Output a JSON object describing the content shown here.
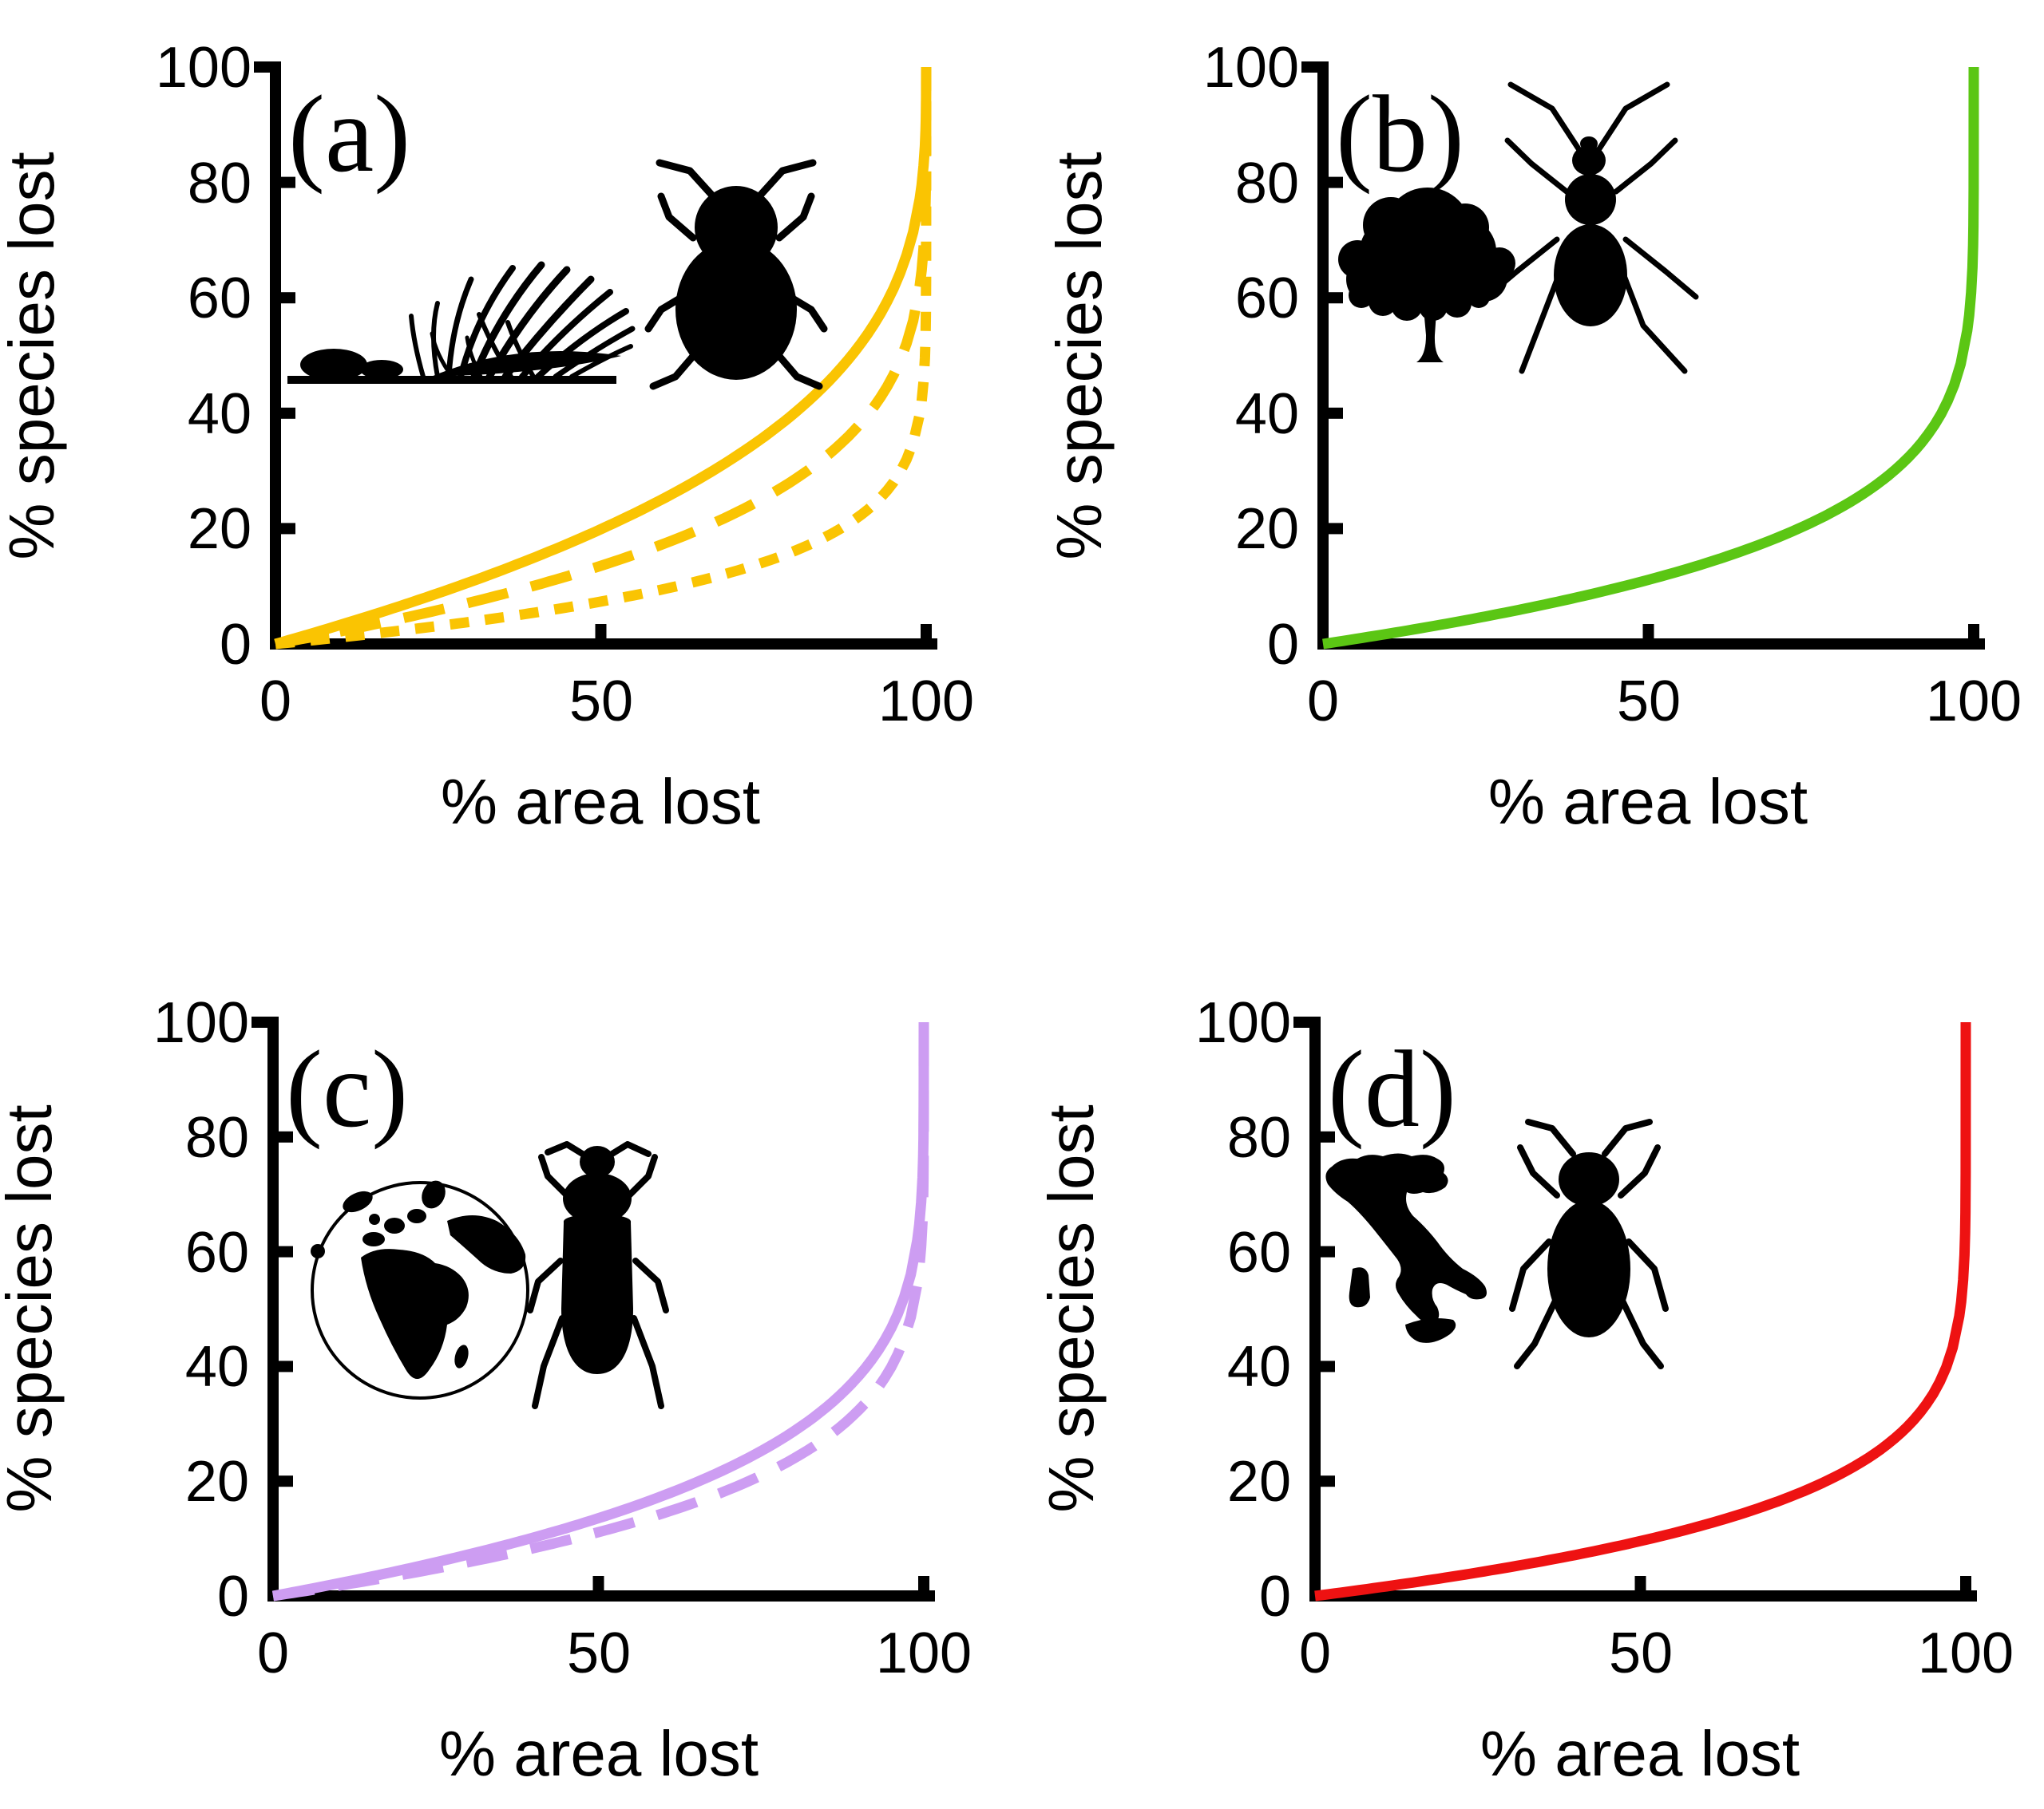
{
  "chart_data": [
    {
      "type": "line",
      "title": "(a)",
      "x_axis": {
        "title": "% area lost",
        "ticks": [
          0,
          50,
          100
        ],
        "range": [
          0,
          100
        ]
      },
      "y_axis": {
        "title": "% species lost",
        "ticks": [
          0,
          20,
          40,
          60,
          80,
          100
        ],
        "range": [
          0,
          100
        ]
      },
      "icons": [
        "grassland",
        "beetle"
      ],
      "color": "#FAC402",
      "series": [
        {
          "name": "solid",
          "line_style": "solid",
          "exponent": 0.32,
          "points": [
            [
              0,
              0
            ],
            [
              25,
              8.8
            ],
            [
              50,
              19.9
            ],
            [
              75,
              35.8
            ],
            [
              90,
              52.1
            ],
            [
              99,
              77.1
            ],
            [
              100,
              100
            ]
          ]
        },
        {
          "name": "long-dash",
          "line_style": "long-dash",
          "exponent": 0.21,
          "points": [
            [
              0,
              0
            ],
            [
              25,
              5.9
            ],
            [
              50,
              13.5
            ],
            [
              75,
              25.3
            ],
            [
              90,
              38.3
            ],
            [
              99,
              62.0
            ],
            [
              100,
              100
            ]
          ]
        },
        {
          "name": "short-dash",
          "line_style": "short-dash",
          "exponent": 0.11,
          "points": [
            [
              0,
              0
            ],
            [
              25,
              3.1
            ],
            [
              50,
              7.3
            ],
            [
              75,
              14.1
            ],
            [
              90,
              22.4
            ],
            [
              99,
              39.7
            ],
            [
              100,
              100
            ]
          ]
        }
      ]
    },
    {
      "type": "line",
      "title": "(b)",
      "x_axis": {
        "title": "% area lost",
        "ticks": [
          0,
          50,
          100
        ],
        "range": [
          0,
          100
        ]
      },
      "y_axis": {
        "title": "% species lost",
        "ticks": [
          0,
          20,
          40,
          60,
          80,
          100
        ],
        "range": [
          0,
          100
        ]
      },
      "icons": [
        "tree",
        "ground-beetle"
      ],
      "color": "#5BC614",
      "series": [
        {
          "name": "solid",
          "line_style": "solid",
          "exponent": 0.17,
          "points": [
            [
              0,
              0
            ],
            [
              25,
              4.8
            ],
            [
              50,
              11.1
            ],
            [
              75,
              21.0
            ],
            [
              90,
              32.4
            ],
            [
              99,
              54.3
            ],
            [
              100,
              100
            ]
          ]
        }
      ]
    },
    {
      "type": "line",
      "title": "(c)",
      "x_axis": {
        "title": "% area lost",
        "ticks": [
          0,
          50,
          100
        ],
        "range": [
          0,
          100
        ]
      },
      "y_axis": {
        "title": "% species lost",
        "ticks": [
          0,
          20,
          40,
          60,
          80,
          100
        ],
        "range": [
          0,
          100
        ]
      },
      "icons": [
        "globe",
        "darkling-beetle"
      ],
      "color": "#CD9DF2",
      "series": [
        {
          "name": "solid",
          "line_style": "solid",
          "exponent": 0.21,
          "points": [
            [
              0,
              0
            ],
            [
              25,
              5.9
            ],
            [
              50,
              13.5
            ],
            [
              75,
              25.3
            ],
            [
              90,
              38.3
            ],
            [
              99,
              62.0
            ],
            [
              100,
              100
            ]
          ]
        },
        {
          "name": "dash",
          "line_style": "long-dash",
          "exponent": 0.17,
          "points": [
            [
              0,
              0
            ],
            [
              25,
              4.8
            ],
            [
              50,
              11.1
            ],
            [
              75,
              21.0
            ],
            [
              90,
              32.4
            ],
            [
              99,
              54.3
            ],
            [
              100,
              100
            ]
          ]
        }
      ]
    },
    {
      "type": "line",
      "title": "(d)",
      "x_axis": {
        "title": "% area lost",
        "ticks": [
          0,
          50,
          100
        ],
        "range": [
          0,
          100
        ]
      },
      "y_axis": {
        "title": "% species lost",
        "ticks": [
          0,
          20,
          40,
          60,
          80,
          100
        ],
        "range": [
          0,
          100
        ]
      },
      "icons": [
        "italy-map",
        "beetle"
      ],
      "color": "#EE1212",
      "series": [
        {
          "name": "solid",
          "line_style": "solid",
          "exponent": 0.145,
          "points": [
            [
              0,
              0
            ],
            [
              25,
              4.1
            ],
            [
              50,
              9.6
            ],
            [
              75,
              18.2
            ],
            [
              90,
              28.4
            ],
            [
              99,
              48.7
            ],
            [
              100,
              100
            ]
          ]
        }
      ]
    }
  ]
}
